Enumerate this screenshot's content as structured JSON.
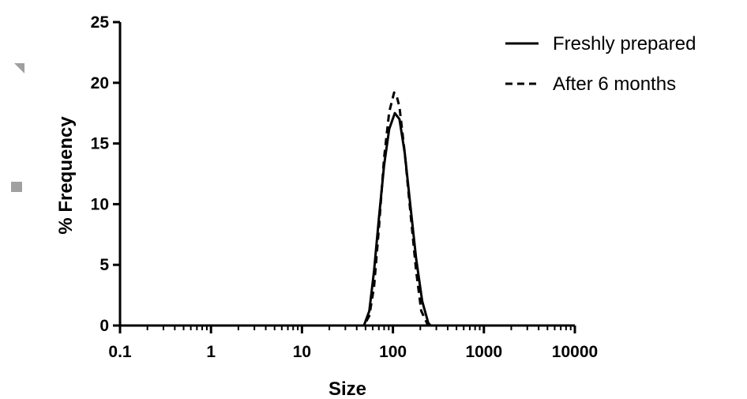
{
  "chart_data": {
    "type": "line",
    "xscale": "log",
    "xlabel": "Size",
    "ylabel": "% Frequency",
    "xlim": [
      0.1,
      10000
    ],
    "ylim": [
      0,
      25
    ],
    "x_ticks": [
      0.1,
      1,
      10,
      100,
      1000,
      10000
    ],
    "x_tick_labels": [
      "0.1",
      "1",
      "10",
      "100",
      "1000",
      "10000"
    ],
    "y_ticks": [
      0,
      5,
      10,
      15,
      20,
      25
    ],
    "y_tick_labels": [
      "0",
      "5",
      "10",
      "15",
      "20",
      "25"
    ],
    "grid": false,
    "legend_position": "top-right",
    "series": [
      {
        "name": "Freshly prepared",
        "style": "solid",
        "color": "#000000",
        "x": [
          0.1,
          48,
          55,
          62,
          70,
          80,
          91,
          105,
          118,
          135,
          155,
          180,
          210,
          245,
          260,
          10000
        ],
        "y": [
          0,
          0,
          1.2,
          4.5,
          8.8,
          13.2,
          16.2,
          17.5,
          17.0,
          14.2,
          10.0,
          5.5,
          2.0,
          0.2,
          0,
          0
        ]
      },
      {
        "name": "After 6 months",
        "style": "dashed",
        "color": "#000000",
        "x": [
          0.1,
          48,
          55,
          62,
          70,
          80,
          91,
          103,
          110,
          118,
          135,
          155,
          180,
          205,
          240,
          250,
          10000
        ],
        "y": [
          0,
          0,
          0.8,
          3.2,
          8.0,
          13.8,
          17.6,
          19.2,
          18.9,
          18.0,
          14.2,
          9.5,
          4.5,
          1.2,
          0.1,
          0,
          0
        ]
      }
    ]
  }
}
